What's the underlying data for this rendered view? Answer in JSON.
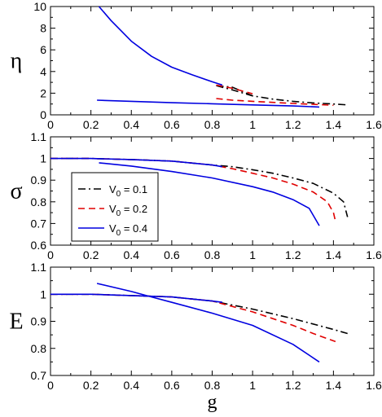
{
  "chart_data": [
    {
      "type": "line",
      "ylabel": "η",
      "xlim": [
        0,
        1.6
      ],
      "ylim": [
        0,
        10
      ],
      "xticks": [
        0,
        0.2,
        0.4,
        0.6,
        0.8,
        1,
        1.2,
        1.4,
        1.6
      ],
      "yticks": [
        0,
        2,
        4,
        6,
        8,
        10
      ],
      "series": [
        {
          "name": "V0 = 0.1",
          "color": "#000000",
          "dash": "dashdot",
          "segments": [
            [
              [
                0.82,
                2.7
              ],
              [
                0.9,
                2.3
              ],
              [
                1.0,
                1.75
              ],
              [
                1.1,
                1.45
              ],
              [
                1.2,
                1.25
              ],
              [
                1.3,
                1.1
              ],
              [
                1.4,
                1.0
              ],
              [
                1.47,
                0.92
              ]
            ],
            [
              [
                0.82,
                2.7
              ],
              [
                0.9,
                2.55
              ],
              [
                1.0,
                1.75
              ]
            ]
          ]
        },
        {
          "name": "V0 = 0.2",
          "color": "#e00000",
          "dash": "dashed",
          "segments": [
            [
              [
                0.82,
                2.75
              ],
              [
                0.9,
                2.45
              ],
              [
                1.0,
                1.95
              ]
            ],
            [
              [
                0.82,
                1.5
              ],
              [
                0.9,
                1.35
              ],
              [
                1.0,
                1.25
              ],
              [
                1.1,
                1.15
              ],
              [
                1.2,
                1.05
              ],
              [
                1.3,
                0.97
              ],
              [
                1.4,
                0.88
              ]
            ]
          ]
        },
        {
          "name": "V0 = 0.4",
          "color": "#0000e0",
          "dash": "solid",
          "segments": [
            [
              [
                0.24,
                10.0
              ],
              [
                0.3,
                8.7
              ],
              [
                0.4,
                6.8
              ],
              [
                0.5,
                5.4
              ],
              [
                0.6,
                4.4
              ],
              [
                0.7,
                3.7
              ],
              [
                0.8,
                3.05
              ],
              [
                0.85,
                2.75
              ]
            ],
            [
              [
                0.23,
                1.35
              ],
              [
                0.4,
                1.25
              ],
              [
                0.6,
                1.12
              ],
              [
                0.8,
                1.02
              ],
              [
                1.0,
                0.92
              ],
              [
                1.2,
                0.82
              ],
              [
                1.33,
                0.72
              ]
            ]
          ]
        }
      ]
    },
    {
      "type": "line",
      "ylabel": "σ",
      "xlim": [
        0,
        1.6
      ],
      "ylim": [
        0.6,
        1.1
      ],
      "xticks": [
        0,
        0.2,
        0.4,
        0.6,
        0.8,
        1,
        1.2,
        1.4,
        1.6
      ],
      "yticks": [
        0.6,
        0.7,
        0.8,
        0.9,
        1,
        1.1
      ],
      "legend": "lower-left",
      "series": [
        {
          "name": "V0 = 0.1",
          "color": "#000000",
          "dash": "dashdot",
          "segments": [
            [
              [
                0,
                1.0
              ],
              [
                0.2,
                1.0
              ],
              [
                0.4,
                0.995
              ],
              [
                0.6,
                0.988
              ],
              [
                0.8,
                0.97
              ],
              [
                0.9,
                0.962
              ],
              [
                1.0,
                0.948
              ],
              [
                1.1,
                0.932
              ],
              [
                1.2,
                0.91
              ],
              [
                1.3,
                0.885
              ],
              [
                1.4,
                0.84
              ],
              [
                1.45,
                0.8
              ],
              [
                1.47,
                0.73
              ]
            ]
          ]
        },
        {
          "name": "V0 = 0.2",
          "color": "#e00000",
          "dash": "dashed",
          "segments": [
            [
              [
                0,
                1.0
              ],
              [
                0.2,
                1.0
              ],
              [
                0.4,
                0.995
              ],
              [
                0.6,
                0.988
              ],
              [
                0.8,
                0.97
              ],
              [
                0.9,
                0.953
              ],
              [
                1.0,
                0.932
              ],
              [
                1.1,
                0.91
              ],
              [
                1.2,
                0.882
              ],
              [
                1.3,
                0.845
              ],
              [
                1.37,
                0.8
              ],
              [
                1.4,
                0.75
              ],
              [
                1.41,
                0.71
              ]
            ]
          ]
        },
        {
          "name": "V0 = 0.4",
          "color": "#0000e0",
          "dash": "solid",
          "segments": [
            [
              [
                0,
                1.0
              ],
              [
                0.2,
                1.0
              ],
              [
                0.4,
                0.995
              ],
              [
                0.6,
                0.988
              ],
              [
                0.8,
                0.97
              ],
              [
                0.85,
                0.962
              ]
            ],
            [
              [
                0.24,
                0.98
              ],
              [
                0.4,
                0.965
              ],
              [
                0.6,
                0.94
              ],
              [
                0.8,
                0.91
              ],
              [
                1.0,
                0.87
              ],
              [
                1.1,
                0.845
              ],
              [
                1.2,
                0.81
              ],
              [
                1.28,
                0.77
              ],
              [
                1.33,
                0.69
              ]
            ]
          ]
        }
      ]
    },
    {
      "type": "line",
      "ylabel": "E",
      "xlabel": "g",
      "xlim": [
        0,
        1.6
      ],
      "ylim": [
        0.7,
        1.1
      ],
      "xticks": [
        0,
        0.2,
        0.4,
        0.6,
        0.8,
        1,
        1.2,
        1.4,
        1.6
      ],
      "yticks": [
        0.7,
        0.8,
        0.9,
        1,
        1.1
      ],
      "series": [
        {
          "name": "V0 = 0.1",
          "color": "#000000",
          "dash": "dashdot",
          "segments": [
            [
              [
                0,
                1.0
              ],
              [
                0.2,
                1.0
              ],
              [
                0.4,
                0.995
              ],
              [
                0.6,
                0.99
              ],
              [
                0.8,
                0.975
              ],
              [
                1.0,
                0.945
              ],
              [
                1.2,
                0.91
              ],
              [
                1.4,
                0.87
              ],
              [
                1.47,
                0.855
              ]
            ]
          ]
        },
        {
          "name": "V0 = 0.2",
          "color": "#e00000",
          "dash": "dashed",
          "segments": [
            [
              [
                0,
                1.0
              ],
              [
                0.2,
                1.0
              ],
              [
                0.4,
                0.995
              ],
              [
                0.6,
                0.99
              ],
              [
                0.8,
                0.975
              ],
              [
                1.0,
                0.935
              ],
              [
                1.2,
                0.885
              ],
              [
                1.3,
                0.855
              ],
              [
                1.41,
                0.825
              ]
            ]
          ]
        },
        {
          "name": "V0 = 0.4",
          "color": "#0000e0",
          "dash": "solid",
          "segments": [
            [
              [
                0,
                1.0
              ],
              [
                0.2,
                1.0
              ],
              [
                0.4,
                0.995
              ],
              [
                0.6,
                0.99
              ],
              [
                0.8,
                0.975
              ],
              [
                0.85,
                0.97
              ]
            ],
            [
              [
                0.23,
                1.04
              ],
              [
                0.4,
                1.01
              ],
              [
                0.5,
                0.99
              ],
              [
                0.6,
                0.97
              ],
              [
                0.8,
                0.93
              ],
              [
                1.0,
                0.885
              ],
              [
                1.2,
                0.815
              ],
              [
                1.33,
                0.75
              ]
            ]
          ]
        }
      ]
    }
  ],
  "legend": {
    "entries": [
      {
        "prefix": "V",
        "sub": "0",
        "suffix": " = 0.1",
        "color": "#000000",
        "dash": "dashdot"
      },
      {
        "prefix": "V",
        "sub": "0",
        "suffix": " = 0.2",
        "color": "#e00000",
        "dash": "dashed"
      },
      {
        "prefix": "V",
        "sub": "0",
        "suffix": " = 0.4",
        "color": "#0000e0",
        "dash": "solid"
      }
    ]
  }
}
